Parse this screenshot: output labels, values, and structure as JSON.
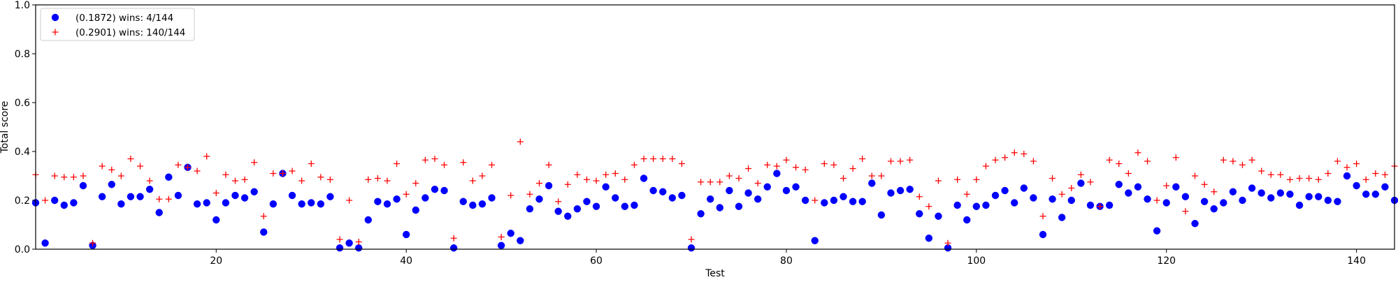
{
  "chart_data": {
    "type": "scatter",
    "title": "",
    "xlabel": "Test",
    "ylabel": "Total score",
    "xlim": [
      1,
      144
    ],
    "ylim": [
      0.0,
      1.0
    ],
    "x_ticks": [
      20,
      40,
      60,
      80,
      100,
      120,
      140
    ],
    "x_tick_labels": [
      "20",
      "40",
      "60",
      "80",
      "100",
      "120",
      "140"
    ],
    "y_ticks": [
      0.0,
      0.2,
      0.4,
      0.6,
      0.8,
      1.0
    ],
    "y_tick_labels": [
      "0.0",
      "0.2",
      "0.4",
      "0.6",
      "0.8",
      "1.0"
    ],
    "grid": false,
    "legend_position": "top-left",
    "series": [
      {
        "name": "(0.1872) wins: 4/144",
        "marker": "circle",
        "color": "#0000ff",
        "x": [
          1,
          2,
          3,
          4,
          5,
          6,
          7,
          8,
          9,
          10,
          11,
          12,
          13,
          14,
          15,
          16,
          17,
          18,
          19,
          20,
          21,
          22,
          23,
          24,
          25,
          26,
          27,
          28,
          29,
          30,
          31,
          32,
          33,
          34,
          35,
          36,
          37,
          38,
          39,
          40,
          41,
          42,
          43,
          44,
          45,
          46,
          47,
          48,
          49,
          50,
          51,
          52,
          53,
          54,
          55,
          56,
          57,
          58,
          59,
          60,
          61,
          62,
          63,
          64,
          65,
          66,
          67,
          68,
          69,
          70,
          71,
          72,
          73,
          74,
          75,
          76,
          77,
          78,
          79,
          80,
          81,
          82,
          83,
          84,
          85,
          86,
          87,
          88,
          89,
          90,
          91,
          92,
          93,
          94,
          95,
          96,
          97,
          98,
          99,
          100,
          101,
          102,
          103,
          104,
          105,
          106,
          107,
          108,
          109,
          110,
          111,
          112,
          113,
          114,
          115,
          116,
          117,
          118,
          119,
          120,
          121,
          122,
          123,
          124,
          125,
          126,
          127,
          128,
          129,
          130,
          131,
          132,
          133,
          134,
          135,
          136,
          137,
          138,
          139,
          140,
          141,
          142,
          143,
          144
        ],
        "values": [
          0.19,
          0.025,
          0.2,
          0.18,
          0.19,
          0.26,
          0.015,
          0.215,
          0.265,
          0.185,
          0.215,
          0.215,
          0.245,
          0.15,
          0.295,
          0.22,
          0.335,
          0.185,
          0.19,
          0.12,
          0.19,
          0.22,
          0.21,
          0.235,
          0.07,
          0.185,
          0.31,
          0.22,
          0.185,
          0.19,
          0.185,
          0.215,
          0.005,
          0.025,
          0.005,
          0.12,
          0.195,
          0.185,
          0.205,
          0.06,
          0.16,
          0.21,
          0.245,
          0.24,
          0.005,
          0.195,
          0.18,
          0.185,
          0.21,
          0.015,
          0.065,
          0.035,
          0.165,
          0.205,
          0.26,
          0.155,
          0.135,
          0.165,
          0.195,
          0.175,
          0.255,
          0.21,
          0.175,
          0.18,
          0.29,
          0.24,
          0.235,
          0.21,
          0.22,
          0.005,
          0.145,
          0.205,
          0.17,
          0.24,
          0.175,
          0.23,
          0.205,
          0.255,
          0.31,
          0.24,
          0.255,
          0.2,
          0.035,
          0.19,
          0.2,
          0.215,
          0.195,
          0.195,
          0.27,
          0.14,
          0.23,
          0.24,
          0.245,
          0.145,
          0.045,
          0.135,
          0.005,
          0.18,
          0.12,
          0.175,
          0.18,
          0.22,
          0.24,
          0.19,
          0.25,
          0.21,
          0.06,
          0.205,
          0.13,
          0.2,
          0.27,
          0.18,
          0.175,
          0.18,
          0.265,
          0.23,
          0.255,
          0.205,
          0.075,
          0.19,
          0.255,
          0.215,
          0.105,
          0.195,
          0.165,
          0.19,
          0.235,
          0.2,
          0.25,
          0.23,
          0.21,
          0.23,
          0.225,
          0.18,
          0.215,
          0.215,
          0.2,
          0.195,
          0.3,
          0.26,
          0.225,
          0.225,
          0.255,
          0.2
        ]
      },
      {
        "name": "(0.2901) wins: 140/144",
        "marker": "plus",
        "color": "#ff0000",
        "x": [
          1,
          2,
          3,
          4,
          5,
          6,
          7,
          8,
          9,
          10,
          11,
          12,
          13,
          14,
          15,
          16,
          17,
          18,
          19,
          20,
          21,
          22,
          23,
          24,
          25,
          26,
          27,
          28,
          29,
          30,
          31,
          32,
          33,
          34,
          35,
          36,
          37,
          38,
          39,
          40,
          41,
          42,
          43,
          44,
          45,
          46,
          47,
          48,
          49,
          50,
          51,
          52,
          53,
          54,
          55,
          56,
          57,
          58,
          59,
          60,
          61,
          62,
          63,
          64,
          65,
          66,
          67,
          68,
          69,
          70,
          71,
          72,
          73,
          74,
          75,
          76,
          77,
          78,
          79,
          80,
          81,
          82,
          83,
          84,
          85,
          86,
          87,
          88,
          89,
          90,
          91,
          92,
          93,
          94,
          95,
          96,
          97,
          98,
          99,
          100,
          101,
          102,
          103,
          104,
          105,
          106,
          107,
          108,
          109,
          110,
          111,
          112,
          113,
          114,
          115,
          116,
          117,
          118,
          119,
          120,
          121,
          122,
          123,
          124,
          125,
          126,
          127,
          128,
          129,
          130,
          131,
          132,
          133,
          134,
          135,
          136,
          137,
          138,
          139,
          140,
          141,
          142,
          143,
          144
        ],
        "values": [
          0.305,
          0.2,
          0.3,
          0.295,
          0.295,
          0.3,
          0.025,
          0.34,
          0.325,
          0.3,
          0.37,
          0.34,
          0.28,
          0.205,
          0.205,
          0.345,
          0.335,
          0.32,
          0.38,
          0.23,
          0.305,
          0.28,
          0.285,
          0.355,
          0.135,
          0.31,
          0.31,
          0.32,
          0.28,
          0.35,
          0.295,
          0.285,
          0.04,
          0.2,
          0.03,
          0.285,
          0.29,
          0.28,
          0.35,
          0.225,
          0.27,
          0.365,
          0.37,
          0.345,
          0.045,
          0.355,
          0.28,
          0.3,
          0.345,
          0.05,
          0.22,
          0.44,
          0.225,
          0.27,
          0.345,
          0.195,
          0.265,
          0.305,
          0.285,
          0.28,
          0.305,
          0.31,
          0.285,
          0.345,
          0.37,
          0.37,
          0.37,
          0.37,
          0.35,
          0.04,
          0.275,
          0.275,
          0.275,
          0.3,
          0.29,
          0.33,
          0.27,
          0.345,
          0.34,
          0.365,
          0.335,
          0.325,
          0.2,
          0.35,
          0.345,
          0.29,
          0.33,
          0.37,
          0.3,
          0.3,
          0.36,
          0.36,
          0.365,
          0.215,
          0.175,
          0.28,
          0.025,
          0.285,
          0.225,
          0.285,
          0.34,
          0.365,
          0.375,
          0.395,
          0.39,
          0.36,
          0.135,
          0.29,
          0.225,
          0.25,
          0.305,
          0.275,
          0.175,
          0.365,
          0.35,
          0.31,
          0.395,
          0.36,
          0.2,
          0.26,
          0.375,
          0.155,
          0.3,
          0.265,
          0.235,
          0.365,
          0.36,
          0.345,
          0.365,
          0.32,
          0.305,
          0.305,
          0.285,
          0.29,
          0.29,
          0.285,
          0.31,
          0.36,
          0.335,
          0.35,
          0.285,
          0.31,
          0.305,
          0.34
        ]
      }
    ]
  }
}
